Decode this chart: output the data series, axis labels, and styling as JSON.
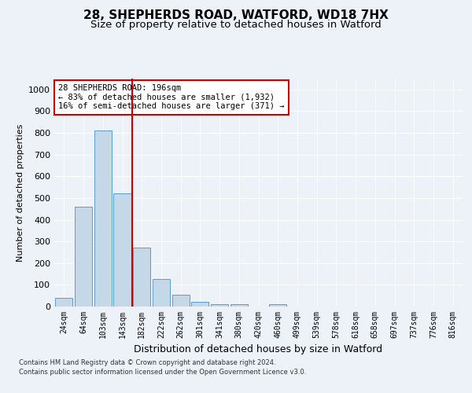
{
  "title1": "28, SHEPHERDS ROAD, WATFORD, WD18 7HX",
  "title2": "Size of property relative to detached houses in Watford",
  "xlabel": "Distribution of detached houses by size in Watford",
  "ylabel": "Number of detached properties",
  "categories": [
    "24sqm",
    "64sqm",
    "103sqm",
    "143sqm",
    "182sqm",
    "222sqm",
    "262sqm",
    "301sqm",
    "341sqm",
    "380sqm",
    "420sqm",
    "460sqm",
    "499sqm",
    "539sqm",
    "578sqm",
    "618sqm",
    "658sqm",
    "697sqm",
    "737sqm",
    "776sqm",
    "816sqm"
  ],
  "values": [
    40,
    460,
    810,
    520,
    270,
    125,
    55,
    20,
    10,
    10,
    0,
    10,
    0,
    0,
    0,
    0,
    0,
    0,
    0,
    0,
    0
  ],
  "bar_color": "#c5d8e8",
  "bar_edge_color": "#5b9bd5",
  "vline_x_index": 4,
  "vline_color": "#cc0000",
  "annotation_text": "28 SHEPHERDS ROAD: 196sqm\n← 83% of detached houses are smaller (1,932)\n16% of semi-detached houses are larger (371) →",
  "annotation_box_color": "#ffffff",
  "annotation_box_edge": "#cc0000",
  "ylim": [
    0,
    1050
  ],
  "yticks": [
    0,
    100,
    200,
    300,
    400,
    500,
    600,
    700,
    800,
    900,
    1000
  ],
  "footnote1": "Contains HM Land Registry data © Crown copyright and database right 2024.",
  "footnote2": "Contains public sector information licensed under the Open Government Licence v3.0.",
  "bg_color": "#edf2f9",
  "plot_bg_color": "#edf2f9",
  "title1_fontsize": 11,
  "title2_fontsize": 9.5,
  "xlabel_fontsize": 9,
  "ylabel_fontsize": 8
}
